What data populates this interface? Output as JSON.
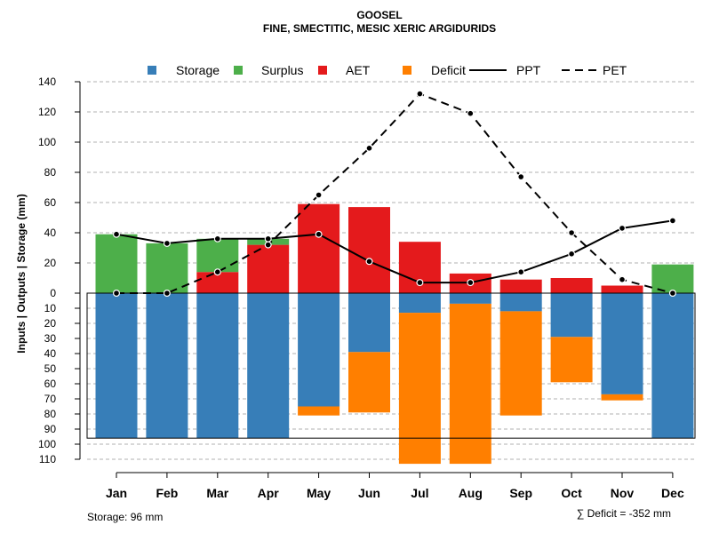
{
  "chart_data": {
    "type": "bar",
    "title": "GOOSEL",
    "subtitle": "FINE, SMECTITIC, MESIC XERIC ARGIDURIDS",
    "ylabel": "Inputs | Outputs | Storage    (mm)",
    "categories": [
      "Jan",
      "Feb",
      "Mar",
      "Apr",
      "May",
      "Jun",
      "Jul",
      "Aug",
      "Sep",
      "Oct",
      "Nov",
      "Dec"
    ],
    "ylim_top": [
      0,
      140
    ],
    "ylim_bottom": [
      0,
      110
    ],
    "upper_ticks": [
      "0",
      "20",
      "40",
      "60",
      "80",
      "100",
      "120",
      "140"
    ],
    "lower_ticks": [
      "10",
      "20",
      "30",
      "40",
      "50",
      "60",
      "70",
      "80",
      "90",
      "100",
      "110"
    ],
    "storage_capacity": 96,
    "legend": [
      {
        "label": "Storage",
        "kind": "square",
        "color": "#377EB8"
      },
      {
        "label": "Surplus",
        "kind": "square",
        "color": "#4DAF4A"
      },
      {
        "label": "AET",
        "kind": "square",
        "color": "#E41A1C"
      },
      {
        "label": "Deficit",
        "kind": "square",
        "color": "#FF7F00"
      },
      {
        "label": "PPT",
        "kind": "line"
      },
      {
        "label": "PET",
        "kind": "dashed"
      }
    ],
    "series": [
      {
        "name": "Storage",
        "color": "#377EB8",
        "values": [
          96,
          96,
          96,
          96,
          75,
          39,
          13,
          7,
          12,
          29,
          67,
          96
        ]
      },
      {
        "name": "Surplus",
        "color": "#4DAF4A",
        "values": [
          39,
          33,
          22,
          4,
          0,
          0,
          0,
          0,
          0,
          0,
          0,
          19
        ]
      },
      {
        "name": "AET",
        "color": "#E41A1C",
        "values": [
          0,
          0,
          14,
          32,
          59,
          57,
          34,
          13,
          9,
          10,
          5,
          0
        ]
      },
      {
        "name": "Deficit",
        "color": "#FF7F00",
        "values": [
          0,
          0,
          0,
          0,
          6,
          40,
          100,
          106,
          69,
          30,
          4,
          0
        ]
      },
      {
        "name": "PPT",
        "values": [
          39,
          33,
          36,
          36,
          39,
          21,
          7,
          7,
          14,
          26,
          43,
          48
        ]
      },
      {
        "name": "PET",
        "values": [
          0,
          0,
          14,
          32,
          65,
          96,
          132,
          119,
          77,
          40,
          9,
          0
        ]
      }
    ],
    "footer_left": "Storage: 96 mm",
    "footer_right": "∑ Deficit = -352 mm"
  }
}
